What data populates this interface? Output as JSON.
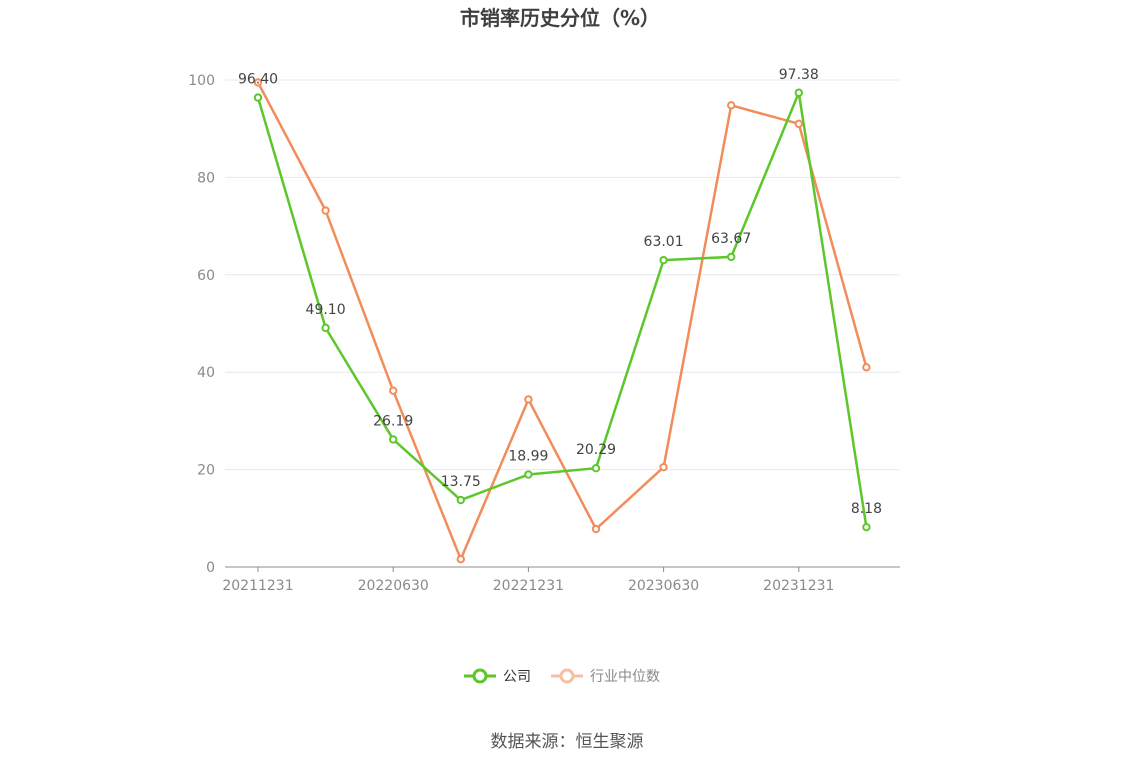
{
  "chart_data": {
    "type": "line",
    "title": "市销率历史分位（%）",
    "x": [
      "20211231",
      "20220331",
      "20220630",
      "20220930",
      "20221231",
      "20230331",
      "20230630",
      "20230930",
      "20231231",
      "20240331"
    ],
    "x_tick_labels": [
      "20211231",
      "20220630",
      "20221231",
      "20230630",
      "20231231"
    ],
    "ylim": [
      0,
      100
    ],
    "y_ticks": [
      0,
      20,
      40,
      60,
      80,
      100
    ],
    "grid": true,
    "legend_position": "bottom",
    "series": [
      {
        "name": "公司",
        "color": "#5cc72a",
        "values": [
          96.4,
          49.1,
          26.19,
          13.75,
          18.99,
          20.29,
          63.01,
          63.67,
          97.38,
          8.18
        ],
        "labels": [
          "96.40",
          "49.10",
          "26.19",
          "13.75",
          "18.99",
          "20.29",
          "63.01",
          "63.67",
          "97.38",
          "8.18"
        ]
      },
      {
        "name": "行业中位数",
        "color": "#f28c5a",
        "legend_color": "#f7bfa3",
        "values": [
          99.5,
          73.2,
          36.2,
          1.6,
          34.4,
          7.8,
          20.5,
          94.8,
          91.0,
          41.0
        ]
      }
    ]
  },
  "source": "数据来源：恒生聚源"
}
